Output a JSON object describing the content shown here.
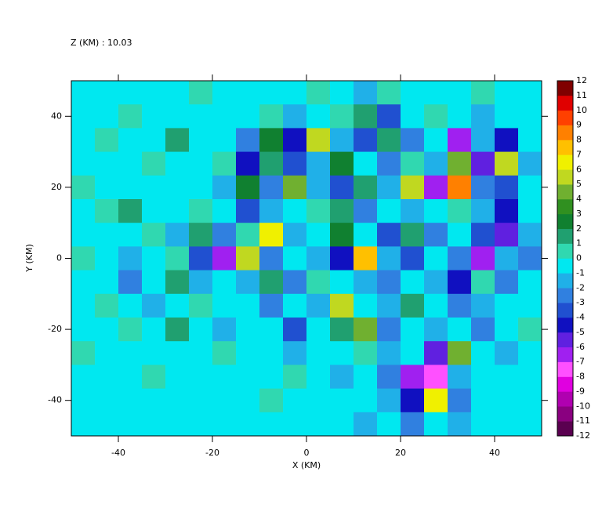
{
  "chart_data": {
    "type": "contour",
    "title": "Z (KM) : 10.03",
    "x_label": "X (KM)",
    "y_label": "Y (KM)",
    "xlim": [
      -50,
      50
    ],
    "ylim": [
      -50,
      50
    ],
    "xticks": [
      -40,
      -20,
      0,
      20,
      40
    ],
    "yticks": [
      -40,
      -20,
      0,
      20,
      40
    ],
    "z": [
      [
        -1,
        -1,
        -1,
        -1,
        -1,
        0,
        -1,
        -1,
        -1,
        -1,
        0,
        -1,
        -2,
        0,
        -1,
        -1,
        -1,
        0,
        -1,
        -1
      ],
      [
        -1,
        -1,
        0,
        -1,
        -1,
        -1,
        -1,
        -1,
        0,
        -2,
        -1,
        0,
        1,
        -4,
        -1,
        0,
        -1,
        -2,
        -1,
        -1
      ],
      [
        -1,
        0,
        -1,
        -1,
        1,
        -1,
        -1,
        -3,
        2,
        -5,
        5,
        -2,
        -4,
        1,
        -3,
        -1,
        -7,
        -2,
        -5,
        -1
      ],
      [
        -1,
        -1,
        -1,
        0,
        -1,
        -1,
        0,
        -5,
        1,
        -4,
        -2,
        2,
        -1,
        -3,
        0,
        -2,
        4,
        -6,
        5,
        -2
      ],
      [
        0,
        -1,
        -1,
        -1,
        -1,
        -1,
        -2,
        2,
        -3,
        4,
        -2,
        -4,
        1,
        -2,
        5,
        -7,
        8,
        -3,
        -4,
        -1
      ],
      [
        -1,
        0,
        1,
        -1,
        -1,
        0,
        -1,
        -4,
        -2,
        -1,
        0,
        1,
        -3,
        -1,
        -2,
        -1,
        0,
        -2,
        -5,
        -1
      ],
      [
        -1,
        -1,
        -1,
        0,
        -2,
        1,
        -3,
        0,
        6,
        -2,
        -1,
        2,
        -1,
        -4,
        1,
        -3,
        -1,
        -4,
        -6,
        -2
      ],
      [
        0,
        -1,
        -2,
        -1,
        0,
        -4,
        -7,
        5,
        -3,
        -1,
        -2,
        -5,
        7,
        -2,
        -4,
        -1,
        -3,
        -7,
        -2,
        -3
      ],
      [
        -1,
        -1,
        -3,
        -1,
        1,
        -2,
        -1,
        -2,
        1,
        -3,
        0,
        -1,
        -2,
        -3,
        -1,
        -2,
        -5,
        0,
        -3,
        -1
      ],
      [
        -1,
        0,
        -1,
        -2,
        -1,
        0,
        -1,
        -1,
        -3,
        -1,
        -2,
        5,
        -1,
        -2,
        1,
        -1,
        -3,
        -2,
        -1,
        -1
      ],
      [
        -1,
        -1,
        0,
        -1,
        1,
        -1,
        -2,
        -1,
        -1,
        -4,
        -1,
        1,
        4,
        -3,
        -1,
        -2,
        -1,
        -3,
        -1,
        0
      ],
      [
        0,
        -1,
        -1,
        -1,
        -1,
        -1,
        0,
        -1,
        -1,
        -2,
        -1,
        -1,
        0,
        -2,
        -1,
        -6,
        4,
        -1,
        -2,
        -1
      ],
      [
        -1,
        -1,
        -1,
        0,
        -1,
        -1,
        -1,
        -1,
        -1,
        0,
        -1,
        -2,
        -1,
        -3,
        -7,
        -8,
        -2,
        -1,
        -1,
        -1
      ],
      [
        -1,
        -1,
        -1,
        -1,
        -1,
        -1,
        -1,
        -1,
        0,
        -1,
        -1,
        -1,
        -1,
        -2,
        -5,
        6,
        -3,
        -1,
        -1,
        -1
      ],
      [
        -1,
        -1,
        -1,
        -1,
        -1,
        -1,
        -1,
        -1,
        -1,
        -1,
        -1,
        -1,
        -2,
        -1,
        -3,
        -1,
        -2,
        -1,
        -1,
        -1
      ]
    ],
    "colorbar": {
      "levels": [
        -12,
        -11,
        -10,
        -9,
        -8,
        -7,
        -6,
        -5,
        -4,
        -3,
        -2,
        -1,
        0,
        1,
        2,
        3,
        4,
        5,
        6,
        7,
        8,
        9,
        10,
        11,
        12
      ],
      "colors": [
        "#5a0050",
        "#8a0080",
        "#b000b0",
        "#e000e0",
        "#ff50ff",
        "#a020f0",
        "#6020e0",
        "#1010c0",
        "#2050d0",
        "#3080e0",
        "#20b0e8",
        "#00e8f0",
        "#30d8b0",
        "#20a070",
        "#108030",
        "#309020",
        "#70b030",
        "#c0d820",
        "#f0f000",
        "#ffc000",
        "#ff8000",
        "#ff4000",
        "#e00000",
        "#800000"
      ]
    }
  }
}
